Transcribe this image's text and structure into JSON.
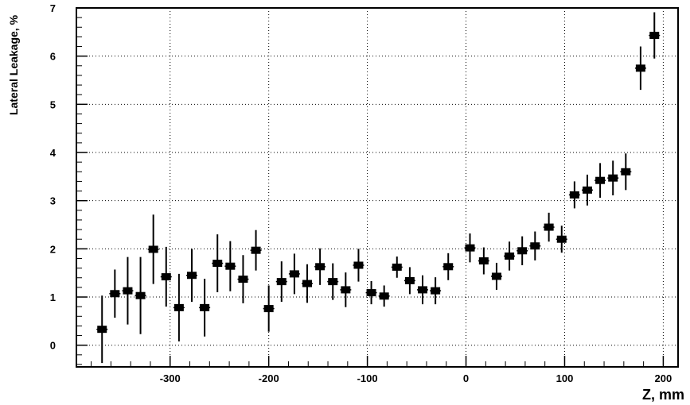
{
  "chart_data": {
    "type": "scatter",
    "xlabel": "Z, mm",
    "ylabel": "Lateral Leakage, %",
    "xlim": [
      -395,
      215
    ],
    "ylim": [
      -0.45,
      7.0
    ],
    "x_ticks": [
      -300,
      -200,
      -100,
      0,
      100,
      200
    ],
    "x_tick_labels": [
      "-300",
      "-200",
      "-100",
      "0",
      "100",
      "200"
    ],
    "y_ticks": [
      0,
      1,
      2,
      3,
      4,
      5,
      6,
      7
    ],
    "y_tick_labels": [
      "0",
      "1",
      "2",
      "3",
      "4",
      "5",
      "6",
      "7"
    ],
    "grid": true,
    "marker": "square",
    "marker_color": "#000000",
    "points": [
      {
        "x": -369,
        "y": 0.33,
        "err": 0.7
      },
      {
        "x": -356,
        "y": 1.07,
        "err": 0.5
      },
      {
        "x": -343,
        "y": 1.13,
        "err": 0.7
      },
      {
        "x": -330,
        "y": 1.03,
        "err": 0.8
      },
      {
        "x": -317,
        "y": 1.99,
        "err": 0.72
      },
      {
        "x": -304,
        "y": 1.42,
        "err": 0.62
      },
      {
        "x": -291,
        "y": 0.78,
        "err": 0.7
      },
      {
        "x": -278,
        "y": 1.45,
        "err": 0.55
      },
      {
        "x": -265,
        "y": 0.78,
        "err": 0.6
      },
      {
        "x": -252,
        "y": 1.7,
        "err": 0.6
      },
      {
        "x": -239,
        "y": 1.64,
        "err": 0.52
      },
      {
        "x": -226,
        "y": 1.37,
        "err": 0.5
      },
      {
        "x": -213,
        "y": 1.97,
        "err": 0.42
      },
      {
        "x": -200,
        "y": 0.76,
        "err": 0.48
      },
      {
        "x": -187,
        "y": 1.32,
        "err": 0.42
      },
      {
        "x": -174,
        "y": 1.48,
        "err": 0.42
      },
      {
        "x": -161,
        "y": 1.28,
        "err": 0.4
      },
      {
        "x": -148,
        "y": 1.63,
        "err": 0.38
      },
      {
        "x": -135,
        "y": 1.32,
        "err": 0.38
      },
      {
        "x": -122,
        "y": 1.15,
        "err": 0.36
      },
      {
        "x": -109,
        "y": 1.66,
        "err": 0.34
      },
      {
        "x": -96,
        "y": 1.09,
        "err": 0.24
      },
      {
        "x": -83,
        "y": 1.02,
        "err": 0.22
      },
      {
        "x": -70,
        "y": 1.62,
        "err": 0.22
      },
      {
        "x": -57,
        "y": 1.34,
        "err": 0.28
      },
      {
        "x": -44,
        "y": 1.15,
        "err": 0.3
      },
      {
        "x": -31,
        "y": 1.13,
        "err": 0.28
      },
      {
        "x": -18,
        "y": 1.63,
        "err": 0.28
      },
      {
        "x": 4,
        "y": 2.02,
        "err": 0.3
      },
      {
        "x": 18,
        "y": 1.75,
        "err": 0.28
      },
      {
        "x": 31,
        "y": 1.43,
        "err": 0.28
      },
      {
        "x": 44,
        "y": 1.85,
        "err": 0.3
      },
      {
        "x": 57,
        "y": 1.96,
        "err": 0.3
      },
      {
        "x": 70,
        "y": 2.06,
        "err": 0.3
      },
      {
        "x": 84,
        "y": 2.45,
        "err": 0.3
      },
      {
        "x": 97,
        "y": 2.2,
        "err": 0.28
      },
      {
        "x": 110,
        "y": 3.12,
        "err": 0.28
      },
      {
        "x": 123,
        "y": 3.22,
        "err": 0.32
      },
      {
        "x": 136,
        "y": 3.42,
        "err": 0.36
      },
      {
        "x": 149,
        "y": 3.47,
        "err": 0.36
      },
      {
        "x": 162,
        "y": 3.6,
        "err": 0.38
      },
      {
        "x": 177,
        "y": 5.75,
        "err": 0.45
      },
      {
        "x": 191,
        "y": 6.43,
        "err": 0.48
      }
    ]
  }
}
